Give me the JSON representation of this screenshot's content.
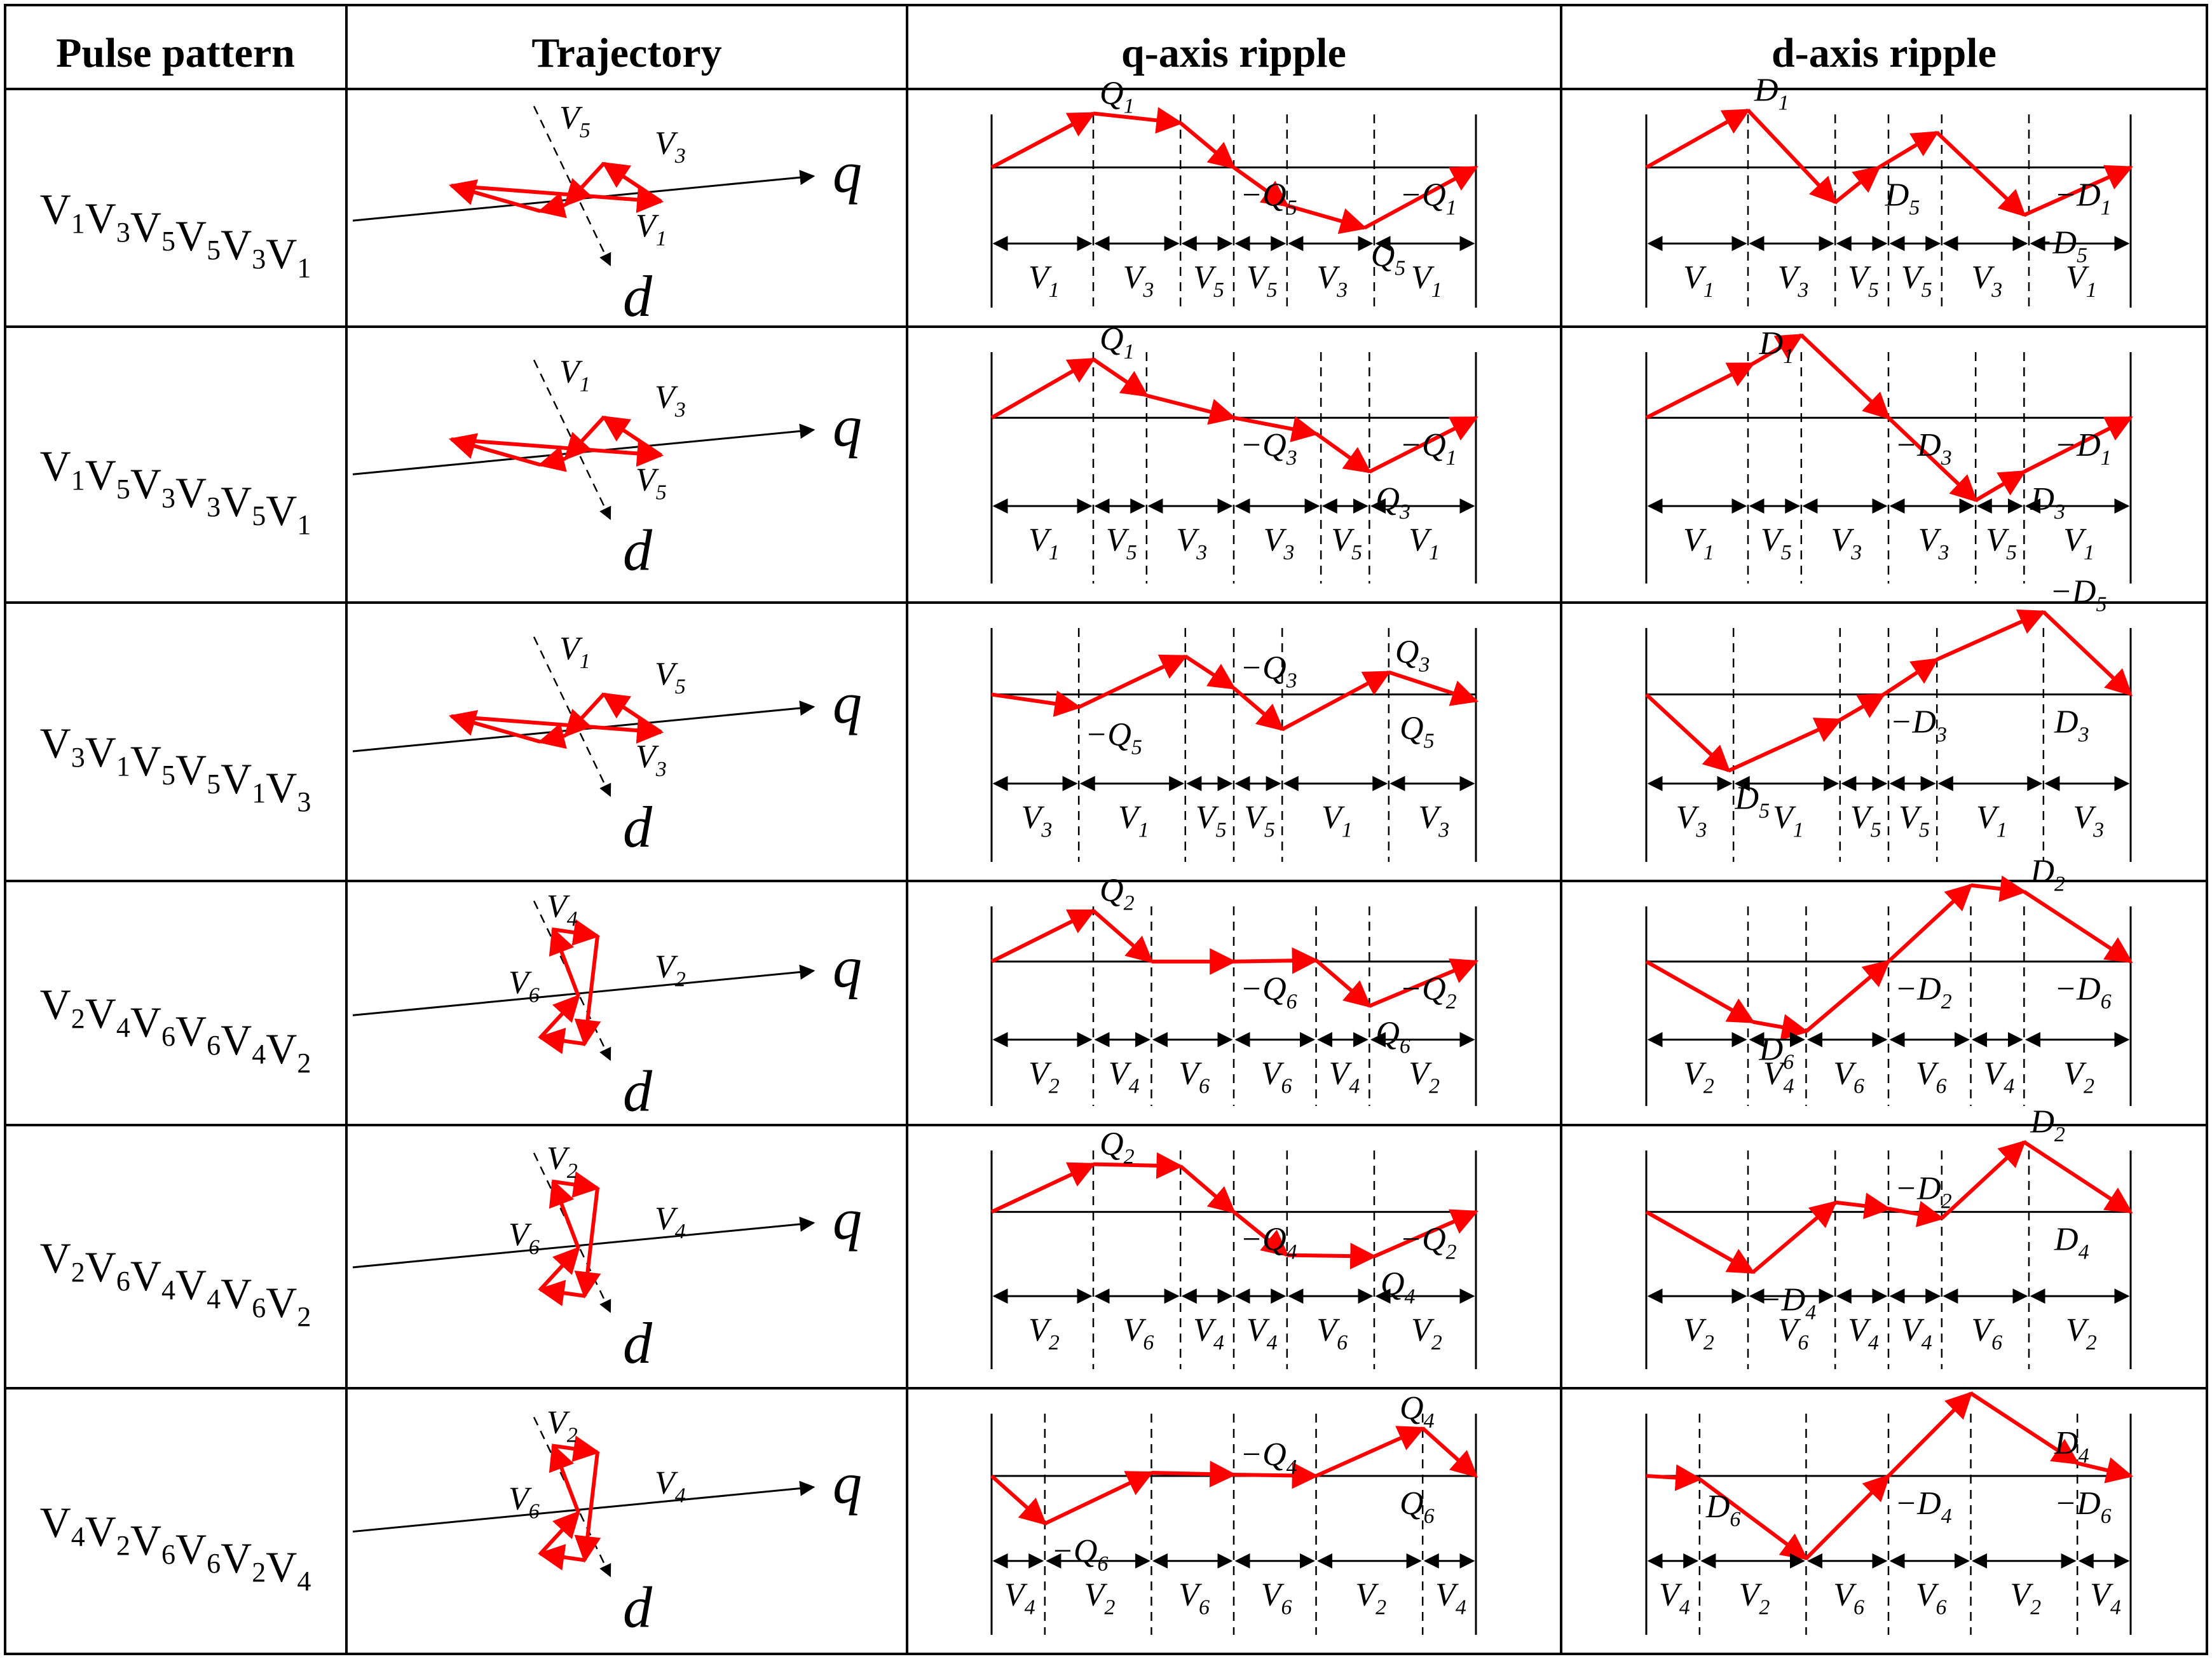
{
  "headers": {
    "pulse_pattern": "Pulse pattern",
    "trajectory": "Trajectory",
    "q_ripple": "q-axis ripple",
    "d_ripple": "d-axis ripple"
  },
  "rows": [
    {
      "pattern": [
        "1",
        "3",
        "5",
        "5",
        "3",
        "1"
      ],
      "traj_labels": [
        [
          "V",
          "5"
        ],
        [
          "V",
          "3"
        ],
        [
          "V",
          "1"
        ]
      ],
      "q_top": [
        [
          "",
          "Q",
          "1"
        ],
        [
          "−",
          "Q",
          "5"
        ],
        [
          "",
          "Q",
          "5"
        ],
        [
          "−",
          "Q",
          "1"
        ]
      ],
      "q_seg": [
        "1",
        "3",
        "5",
        "5",
        "3",
        "1"
      ],
      "d_top": [
        [
          "",
          "D",
          "1"
        ],
        [
          "",
          "D",
          "5"
        ],
        [
          "−",
          "D",
          "5"
        ],
        [
          "−",
          "D",
          "1"
        ]
      ],
      "d_seg": [
        "1",
        "3",
        "5",
        "5",
        "3",
        "1"
      ]
    },
    {
      "pattern": [
        "1",
        "5",
        "3",
        "3",
        "5",
        "1"
      ],
      "traj_labels": [
        [
          "V",
          "1"
        ],
        [
          "V",
          "3"
        ],
        [
          "V",
          "5"
        ]
      ],
      "q_top": [
        [
          "",
          "Q",
          "1"
        ],
        [
          "−",
          "Q",
          "3"
        ],
        [
          "",
          "Q",
          "3"
        ],
        [
          "−",
          "Q",
          "1"
        ]
      ],
      "q_seg": [
        "1",
        "5",
        "3",
        "3",
        "5",
        "1"
      ],
      "d_top": [
        [
          "",
          "D",
          "1"
        ],
        [
          "−",
          "D",
          "3"
        ],
        [
          "",
          "D",
          "3"
        ],
        [
          "−",
          "D",
          "1"
        ]
      ],
      "d_seg": [
        "1",
        "5",
        "3",
        "3",
        "5",
        "1"
      ]
    },
    {
      "pattern": [
        "3",
        "1",
        "5",
        "5",
        "1",
        "3"
      ],
      "traj_labels": [
        [
          "V",
          "1"
        ],
        [
          "V",
          "5"
        ],
        [
          "V",
          "3"
        ]
      ],
      "q_top": [
        [
          "−",
          "Q",
          "5"
        ],
        [
          "−",
          "Q",
          "3"
        ],
        [
          "",
          "Q",
          "3"
        ],
        [
          "",
          "Q",
          "5"
        ]
      ],
      "q_seg": [
        "3",
        "1",
        "5",
        "5",
        "1",
        "3"
      ],
      "d_top": [
        [
          "",
          "D",
          "5"
        ],
        [
          "−",
          "D",
          "3"
        ],
        [
          "−",
          "D",
          "5"
        ],
        [
          "",
          "D",
          "3"
        ]
      ],
      "d_seg": [
        "3",
        "1",
        "5",
        "5",
        "1",
        "3"
      ]
    },
    {
      "pattern": [
        "2",
        "4",
        "6",
        "6",
        "4",
        "2"
      ],
      "traj_labels": [
        [
          "V",
          "4"
        ],
        [
          "V",
          "6"
        ],
        [
          "V",
          "2"
        ]
      ],
      "q_top": [
        [
          "",
          "Q",
          "2"
        ],
        [
          "−",
          "Q",
          "6"
        ],
        [
          "",
          "Q",
          "6"
        ],
        [
          "−",
          "Q",
          "2"
        ]
      ],
      "q_seg": [
        "2",
        "4",
        "6",
        "6",
        "4",
        "2"
      ],
      "d_top": [
        [
          "",
          "D",
          "6"
        ],
        [
          "−",
          "D",
          "2"
        ],
        [
          "",
          "D",
          "2"
        ],
        [
          "−",
          "D",
          "6"
        ]
      ],
      "d_seg": [
        "2",
        "4",
        "6",
        "6",
        "4",
        "2"
      ]
    },
    {
      "pattern": [
        "2",
        "6",
        "4",
        "4",
        "6",
        "2"
      ],
      "traj_labels": [
        [
          "V",
          "2"
        ],
        [
          "V",
          "6"
        ],
        [
          "V",
          "4"
        ]
      ],
      "q_top": [
        [
          "",
          "Q",
          "2"
        ],
        [
          "−",
          "Q",
          "4"
        ],
        [
          "",
          "Q",
          "4"
        ],
        [
          "−",
          "Q",
          "2"
        ]
      ],
      "q_seg": [
        "2",
        "6",
        "4",
        "4",
        "6",
        "2"
      ],
      "d_top": [
        [
          "−",
          "D",
          "4"
        ],
        [
          "−",
          "D",
          "2"
        ],
        [
          "",
          "D",
          "2"
        ],
        [
          "",
          "D",
          "4"
        ]
      ],
      "d_seg": [
        "2",
        "6",
        "4",
        "4",
        "6",
        "2"
      ]
    },
    {
      "pattern": [
        "4",
        "2",
        "6",
        "6",
        "2",
        "4"
      ],
      "traj_labels": [
        [
          "V",
          "2"
        ],
        [
          "V",
          "6"
        ],
        [
          "V",
          "4"
        ]
      ],
      "q_top": [
        [
          "−",
          "Q",
          "6"
        ],
        [
          "−",
          "Q",
          "4"
        ],
        [
          "",
          "Q",
          "4"
        ],
        [
          "",
          "Q",
          "6"
        ]
      ],
      "q_seg": [
        "4",
        "2",
        "6",
        "6",
        "2",
        "4"
      ],
      "d_top": [
        [
          "",
          "D",
          "6"
        ],
        [
          "−",
          "D",
          "4"
        ],
        [
          "",
          "D",
          "4"
        ],
        [
          "−",
          "D",
          "6"
        ]
      ],
      "d_seg": [
        "4",
        "2",
        "6",
        "6",
        "2",
        "4"
      ]
    }
  ],
  "axis_q": "q",
  "axis_d": "d",
  "letter_V": "V"
}
